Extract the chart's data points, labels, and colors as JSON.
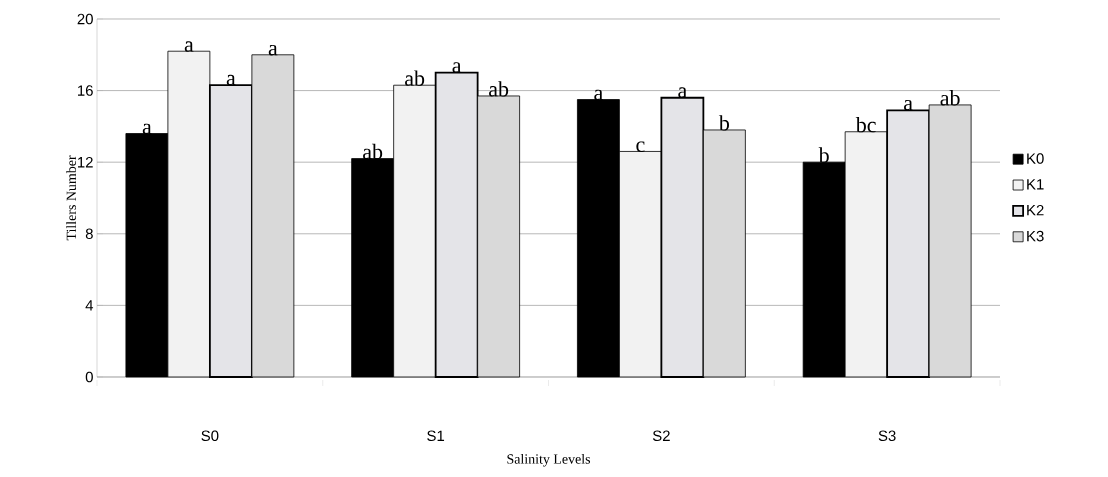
{
  "chart_data": {
    "type": "bar",
    "xlabel": "Salinity Levels",
    "ylabel": "Tillers Number",
    "categories": [
      "S0",
      "S1",
      "S2",
      "S3"
    ],
    "series": [
      {
        "name": "K0",
        "color": "#000000",
        "values": [
          13.6,
          12.2,
          15.5,
          12.0
        ],
        "value_labels": [
          "a",
          "ab",
          "a",
          "b"
        ]
      },
      {
        "name": "K1",
        "color": "#f2f2f2",
        "values": [
          18.2,
          16.3,
          12.6,
          13.7
        ],
        "value_labels": [
          "a",
          "ab",
          "c",
          "bc"
        ]
      },
      {
        "name": "K2",
        "color": "#e4e4e8",
        "values": [
          16.3,
          17.0,
          15.6,
          14.9
        ],
        "value_labels": [
          "a",
          "a",
          "a",
          "a"
        ]
      },
      {
        "name": "K3",
        "color": "#d9d9d9",
        "values": [
          18.0,
          15.7,
          13.8,
          15.2
        ],
        "value_labels": [
          "a",
          "ab",
          "b",
          "ab"
        ]
      }
    ],
    "ylim": [
      0,
      20
    ],
    "yticks": [
      0,
      4,
      8,
      12,
      16,
      20
    ],
    "grid": "y",
    "legend": "right"
  }
}
